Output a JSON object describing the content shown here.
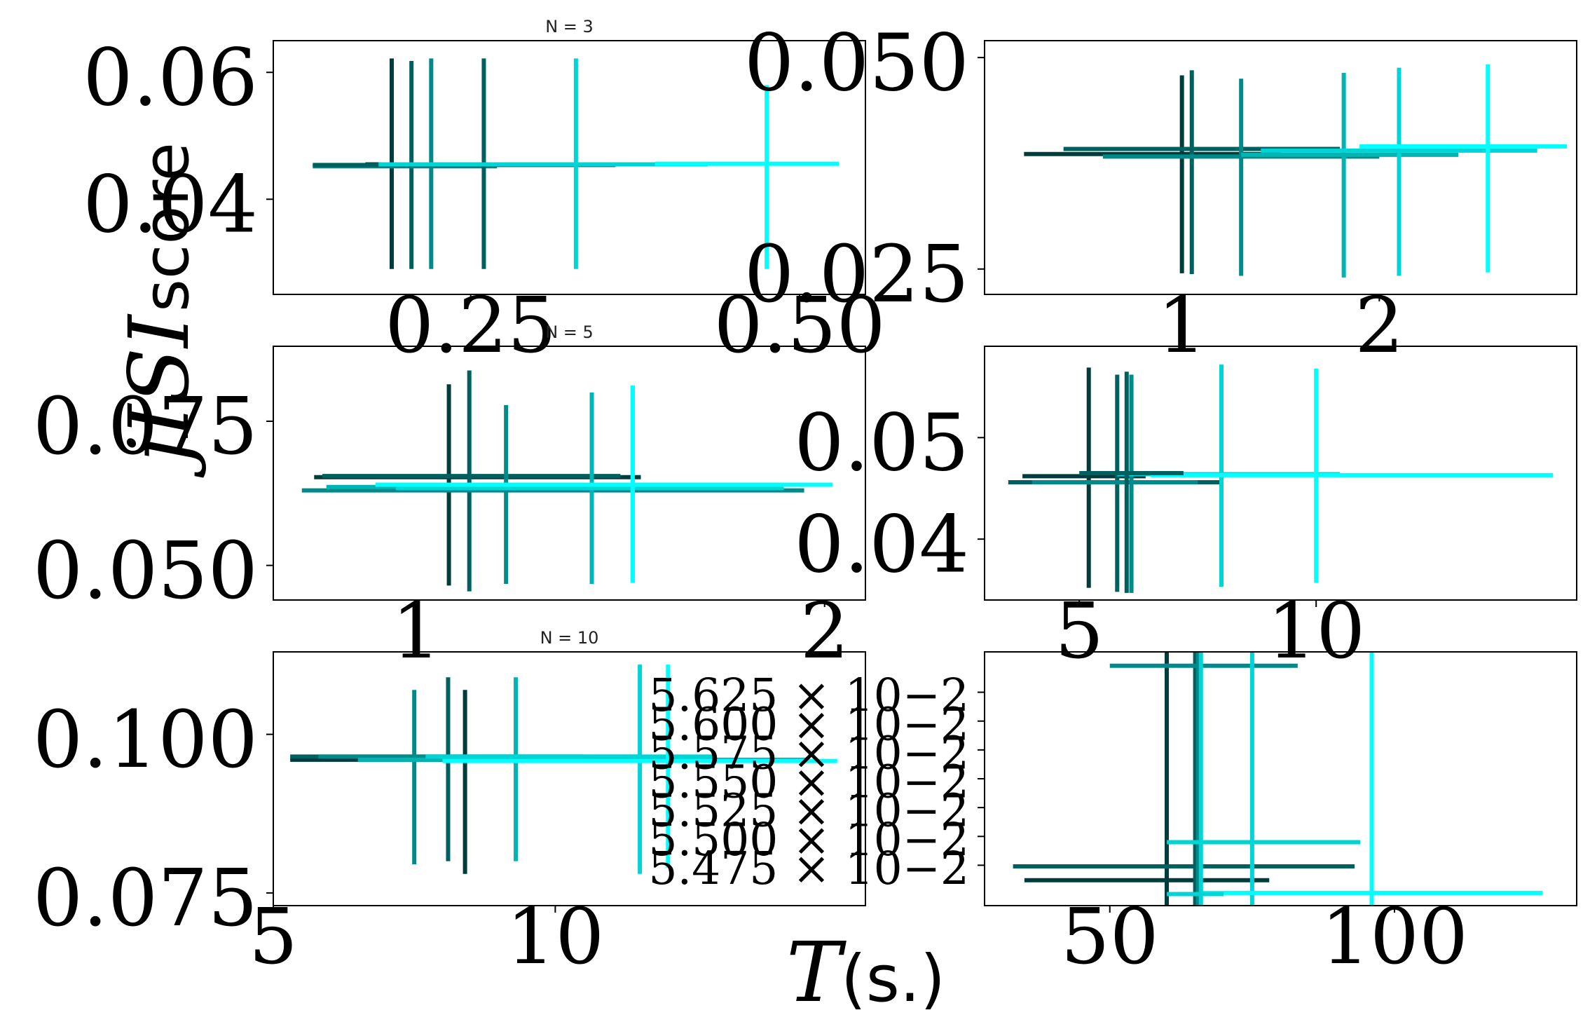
{
  "chart_data": {
    "type": "scatter",
    "description_colors": [
      "#003c3c",
      "#006060",
      "#008a8a",
      "#00b4b4",
      "#00d4d4",
      "#00ffff"
    ],
    "ylabel_math": "jISI",
    "ylabel_text": " score",
    "xlabel_math": "T",
    "xlabel_text": " (s.)",
    "panels": [
      {
        "title": "N = 3",
        "xlim": [
          0.1,
          0.55
        ],
        "ylim": [
          0.025,
          0.065
        ],
        "xticks": [
          {
            "v": 0.25,
            "label": "0.25"
          },
          {
            "v": 0.5,
            "label": "0.50"
          }
        ],
        "yticks": [
          {
            "v": 0.04,
            "label": "0.04"
          },
          {
            "v": 0.06,
            "label": "0.06"
          }
        ],
        "points": [
          {
            "x": 0.19,
            "y": 0.0455,
            "xerr": [
              0.17,
              0.2
            ],
            "yerr": [
              0.029,
              0.0622
            ],
            "color": "#003c3c"
          },
          {
            "x": 0.205,
            "y": 0.0455,
            "xerr": [
              0.18,
              0.22
            ],
            "yerr": [
              0.029,
              0.0618
            ],
            "color": "#006060"
          },
          {
            "x": 0.22,
            "y": 0.0452,
            "xerr": [
              0.13,
              0.27
            ],
            "yerr": [
              0.029,
              0.0622
            ],
            "color": "#008a8a"
          },
          {
            "x": 0.26,
            "y": 0.0454,
            "xerr": [
              0.13,
              0.36
            ],
            "yerr": [
              0.029,
              0.0622
            ],
            "color": "#006060"
          },
          {
            "x": 0.33,
            "y": 0.0455,
            "xerr": [
              0.18,
              0.43
            ],
            "yerr": [
              0.029,
              0.0622
            ],
            "color": "#00d4d4"
          },
          {
            "x": 0.475,
            "y": 0.0456,
            "xerr": [
              0.39,
              0.53
            ],
            "yerr": [
              0.029,
              0.058
            ],
            "color": "#00ffff"
          }
        ]
      },
      {
        "title": "",
        "xlim": [
          0.0,
          3.0
        ],
        "ylim": [
          0.022,
          0.052
        ],
        "xticks": [
          {
            "v": 1,
            "label": "1"
          },
          {
            "v": 2,
            "label": "2"
          }
        ],
        "yticks": [
          {
            "v": 0.025,
            "label": "0.025"
          },
          {
            "v": 0.05,
            "label": "0.050"
          }
        ],
        "points": [
          {
            "x": 1.0,
            "y": 0.0386,
            "xerr": [
              0.2,
              1.5
            ],
            "yerr": [
              0.0245,
              0.0479
            ],
            "color": "#003c3c"
          },
          {
            "x": 1.05,
            "y": 0.0392,
            "xerr": [
              0.4,
              1.8
            ],
            "yerr": [
              0.0244,
              0.0485
            ],
            "color": "#006060"
          },
          {
            "x": 1.3,
            "y": 0.0383,
            "xerr": [
              0.6,
              2.0
            ],
            "yerr": [
              0.0242,
              0.0475
            ],
            "color": "#008a8a"
          },
          {
            "x": 1.82,
            "y": 0.0385,
            "xerr": [
              1.3,
              2.4
            ],
            "yerr": [
              0.024,
              0.0482
            ],
            "color": "#00b4b4"
          },
          {
            "x": 2.1,
            "y": 0.039,
            "xerr": [
              1.4,
              2.8
            ],
            "yerr": [
              0.0242,
              0.0488
            ],
            "color": "#00d4d4"
          },
          {
            "x": 2.55,
            "y": 0.0395,
            "xerr": [
              1.9,
              2.95
            ],
            "yerr": [
              0.0246,
              0.0492
            ],
            "color": "#00ffff"
          }
        ]
      },
      {
        "title": "N = 5",
        "xlim": [
          0.65,
          2.1
        ],
        "ylim": [
          0.044,
          0.088
        ],
        "xticks": [
          {
            "v": 1.0,
            "label": "1"
          },
          {
            "v": 2.0,
            "label": "2"
          }
        ],
        "yticks": [
          {
            "v": 0.05,
            "label": "0.050"
          },
          {
            "v": 0.075,
            "label": "0.075"
          }
        ],
        "points": [
          {
            "x": 1.08,
            "y": 0.0653,
            "xerr": [
              0.75,
              1.55
            ],
            "yerr": [
              0.0465,
              0.0814
            ],
            "color": "#003c3c"
          },
          {
            "x": 1.13,
            "y": 0.0655,
            "xerr": [
              0.77,
              1.5
            ],
            "yerr": [
              0.0455,
              0.0838
            ],
            "color": "#006060"
          },
          {
            "x": 1.22,
            "y": 0.063,
            "xerr": [
              0.72,
              1.95
            ],
            "yerr": [
              0.0468,
              0.0778
            ],
            "color": "#008a8a"
          },
          {
            "x": 1.43,
            "y": 0.0636,
            "xerr": [
              0.78,
              1.85
            ],
            "yerr": [
              0.0468,
              0.08
            ],
            "color": "#00b4b4"
          },
          {
            "x": 1.53,
            "y": 0.0634,
            "xerr": [
              0.95,
              1.9
            ],
            "yerr": [
              0.047,
              0.0812
            ],
            "color": "#00d4d4"
          },
          {
            "x": 1.53,
            "y": 0.064,
            "xerr": [
              0.9,
              2.02
            ],
            "yerr": [
              0.047,
              0.0812
            ],
            "color": "#00ffff"
          }
        ]
      },
      {
        "title": "",
        "xlim": [
          3.0,
          15.5
        ],
        "ylim": [
          0.034,
          0.059
        ],
        "xticks": [
          {
            "v": 5,
            "label": "5"
          },
          {
            "v": 10,
            "label": "10"
          }
        ],
        "yticks": [
          {
            "v": 0.04,
            "label": "0.04"
          },
          {
            "v": 0.05,
            "label": "0.05"
          }
        ],
        "points": [
          {
            "x": 5.2,
            "y": 0.0462,
            "xerr": [
              3.8,
              6.4
            ],
            "yerr": [
              0.0352,
              0.0569
            ],
            "color": "#003c3c"
          },
          {
            "x": 5.8,
            "y": 0.0456,
            "xerr": [
              3.5,
              8.0
            ],
            "yerr": [
              0.0348,
              0.0562
            ],
            "color": "#006060"
          },
          {
            "x": 6.1,
            "y": 0.0456,
            "xerr": [
              4.0,
              7.5
            ],
            "yerr": [
              0.0347,
              0.0562
            ],
            "color": "#008a8a"
          },
          {
            "x": 8.0,
            "y": 0.0464,
            "xerr": [
              5.8,
              10.5
            ],
            "yerr": [
              0.0353,
              0.0572
            ],
            "color": "#00d4d4"
          },
          {
            "x": 10.0,
            "y": 0.0463,
            "xerr": [
              6.5,
              15.0
            ],
            "yerr": [
              0.0357,
              0.0568
            ],
            "color": "#00ffff"
          },
          {
            "x": 6.0,
            "y": 0.0465,
            "xerr": [
              5.0,
              7.2
            ],
            "yerr": [
              0.0347,
              0.0565
            ],
            "color": "#006060"
          }
        ]
      },
      {
        "title": "N = 10",
        "xlim": [
          5.0,
          15.5
        ],
        "ylim": [
          0.073,
          0.113
        ],
        "xticks": [
          {
            "v": 5,
            "label": "5"
          },
          {
            "v": 10,
            "label": "10"
          }
        ],
        "yticks": [
          {
            "v": 0.075,
            "label": "0.075"
          },
          {
            "v": 0.1,
            "label": "0.100"
          }
        ],
        "points": [
          {
            "x": 8.4,
            "y": 0.096,
            "xerr": [
              5.3,
              11.2
            ],
            "yerr": [
              0.078,
              0.107
            ],
            "color": "#003c3c"
          },
          {
            "x": 8.1,
            "y": 0.0965,
            "xerr": [
              5.3,
              10.5
            ],
            "yerr": [
              0.08,
              0.109
            ],
            "color": "#006060"
          },
          {
            "x": 7.5,
            "y": 0.0965,
            "xerr": [
              5.8,
              11.5
            ],
            "yerr": [
              0.0795,
              0.107
            ],
            "color": "#008a8a"
          },
          {
            "x": 9.3,
            "y": 0.096,
            "xerr": [
              6.5,
              14.5
            ],
            "yerr": [
              0.08,
              0.109
            ],
            "color": "#00b4b4"
          },
          {
            "x": 11.5,
            "y": 0.0965,
            "xerr": [
              7.7,
              12.8
            ],
            "yerr": [
              0.078,
              0.111
            ],
            "color": "#00d4d4"
          },
          {
            "x": 12.0,
            "y": 0.0958,
            "xerr": [
              8.0,
              15.0
            ],
            "yerr": [
              0.079,
              0.111
            ],
            "color": "#00ffff"
          }
        ]
      },
      {
        "title": "",
        "xlim": [
          28,
          132
        ],
        "ylim": [
          5.44,
          5.66
        ],
        "xticks": [
          {
            "v": 50,
            "label": "50"
          },
          {
            "v": 100,
            "label": "100"
          }
        ],
        "yticks": [
          {
            "v": 5.475,
            "label": "5.475 × 10−2"
          },
          {
            "v": 5.5,
            "label": "5.500 × 10−2"
          },
          {
            "v": 5.525,
            "label": "5.525 × 10−2"
          },
          {
            "v": 5.55,
            "label": "5.550 × 10−2"
          },
          {
            "v": 5.575,
            "label": "5.575 × 10−2"
          },
          {
            "v": 5.6,
            "label": "5.600 × 10−2"
          },
          {
            "v": 5.625,
            "label": "5.625 × 10−2"
          }
        ],
        "points": [
          {
            "x": 60,
            "y": 5.462,
            "xerr": [
              35,
              78
            ],
            "yerr": [
              5.44,
              5.66
            ],
            "color": "#003c3c"
          },
          {
            "x": 65,
            "y": 5.474,
            "xerr": [
              33,
              93
            ],
            "yerr": [
              5.44,
              5.66
            ],
            "color": "#006060"
          },
          {
            "x": 65.5,
            "y": 5.648,
            "xerr": [
              50,
              83
            ],
            "yerr": [
              5.44,
              5.66
            ],
            "color": "#008a8a"
          },
          {
            "x": 75,
            "y": 5.495,
            "xerr": [
              60,
              94
            ],
            "yerr": [
              5.44,
              5.66
            ],
            "color": "#00d4d4"
          },
          {
            "x": 96,
            "y": 5.451,
            "xerr": [
              66,
              126
            ],
            "yerr": [
              5.44,
              5.66
            ],
            "color": "#00ffff"
          },
          {
            "x": 66,
            "y": 5.45,
            "xerr": [
              60,
              70
            ],
            "yerr": [
              5.44,
              5.66
            ],
            "color": "#00d4d4"
          }
        ]
      }
    ]
  }
}
